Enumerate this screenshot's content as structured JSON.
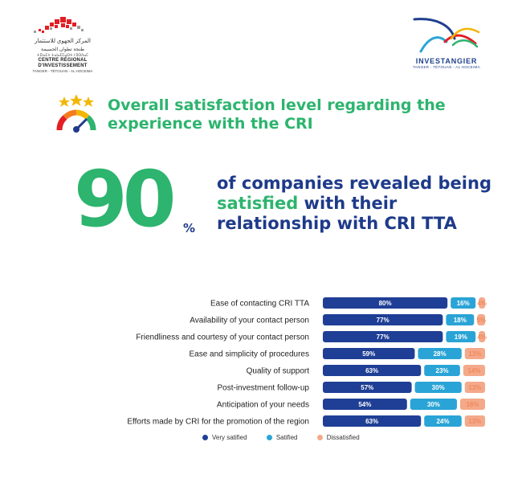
{
  "logos": {
    "left": {
      "arabic_line1": "المركز الجهوي للاستثمار",
      "arabic_line2": "طنجة تطوان الحسيمة",
      "tifinagh": "ⵜⵉⵏⴰⵎⵜ ⵜⴰⵏⴰⵎⵎⴰⵙⵜ ⵏ ⵓⵙⴷⴰⵎ",
      "name": "CENTRE RÉGIONAL D'INVESTISSEMENT",
      "region": "TANGER - TÉTOUAN - AL HOCEIMA"
    },
    "right": {
      "name": "INVESTANGIER",
      "tagline": "TANGER - TÉTOUAN - AL HOCEIMA"
    }
  },
  "heading": {
    "title": "Overall satisfaction level regarding the experience with the CRI",
    "icon": "satisfaction-gauge-stars-icon"
  },
  "kpi": {
    "value": "90",
    "unit": "%",
    "text_before": "of companies revealed being ",
    "text_highlight": "satisfied",
    "text_after": " with their relationship with CRI TTA"
  },
  "colors": {
    "very_satisfied": "#1e3f95",
    "satisfied": "#2aa4d6",
    "dissatisfied": "#f4a98a",
    "green": "#2db46e",
    "navy": "#1e3a8a"
  },
  "chart_data": {
    "type": "bar",
    "orientation": "horizontal-stacked",
    "categories": [
      "Ease of contacting CRI TTA",
      "Availability of your contact person",
      "Friendliness and courtesy of your contact person",
      "Ease and simplicity of procedures",
      "Quality of support",
      "Post-investment follow-up",
      "Anticipation of your needs",
      "Efforts made by CRI for the promotion of the region"
    ],
    "series": [
      {
        "name": "Very satified",
        "values": [
          80,
          77,
          77,
          59,
          63,
          57,
          54,
          63
        ]
      },
      {
        "name": "Satified",
        "values": [
          16,
          18,
          19,
          28,
          23,
          30,
          30,
          24
        ]
      },
      {
        "name": "Dissatisfied",
        "values": [
          4,
          5,
          4,
          13,
          14,
          13,
          16,
          13
        ]
      }
    ],
    "unit": "%",
    "legend_position": "bottom"
  }
}
